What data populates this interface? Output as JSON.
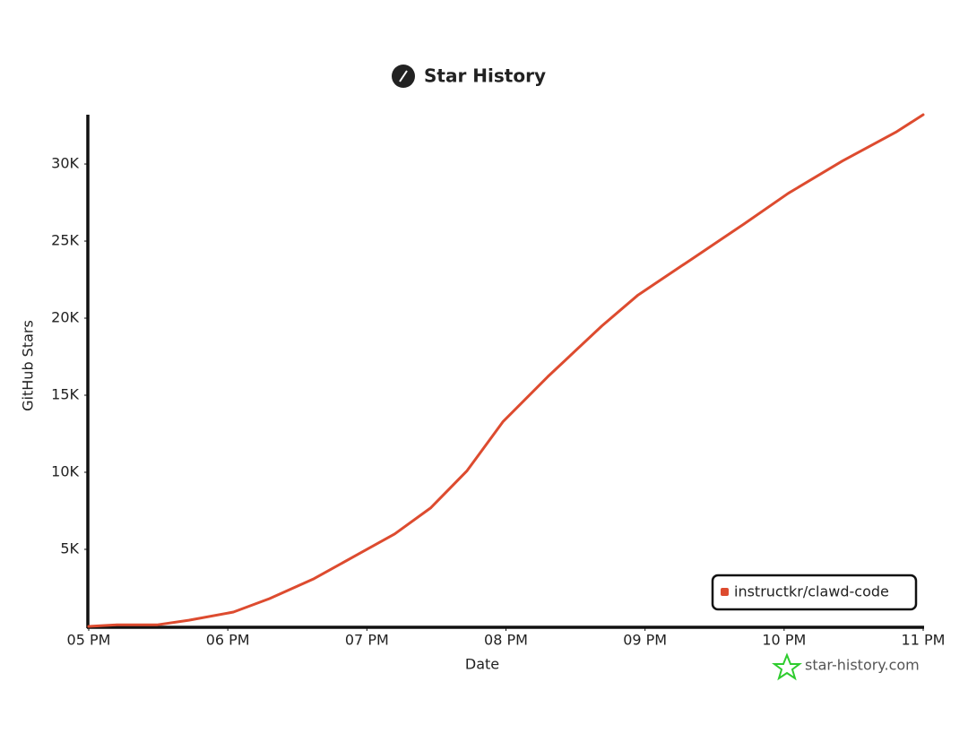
{
  "chart_data": {
    "type": "line",
    "title": "Star History",
    "x_label": "Date",
    "y_label": "GitHub Stars",
    "watermark": "star-history.com",
    "x": [
      17.0,
      17.2,
      17.49,
      17.72,
      18.04,
      18.3,
      18.62,
      18.94,
      19.2,
      19.46,
      19.72,
      19.98,
      20.3,
      20.69,
      20.95,
      21.33,
      21.71,
      22.03,
      22.42,
      22.81,
      23.0
    ],
    "series": [
      {
        "name": "instructkr/clawd-code",
        "color": "#dd4b2f",
        "values": [
          0,
          100,
          100,
          400,
          930,
          1800,
          3100,
          4700,
          6000,
          7700,
          10100,
          13300,
          16200,
          19500,
          21500,
          23800,
          26100,
          28100,
          30200,
          32100,
          33200
        ]
      }
    ],
    "xlim": [
      17,
      23
    ],
    "xticks": [
      {
        "value": 17,
        "label": "05 PM"
      },
      {
        "value": 18,
        "label": "06 PM"
      },
      {
        "value": 19,
        "label": "07 PM"
      },
      {
        "value": 20,
        "label": "08 PM"
      },
      {
        "value": 21,
        "label": "09 PM"
      },
      {
        "value": 22,
        "label": "10 PM"
      },
      {
        "value": 23,
        "label": "11 PM"
      }
    ],
    "ylim": [
      0,
      33200
    ],
    "yticks": [
      {
        "value": 5000,
        "label": "5K"
      },
      {
        "value": 10000,
        "label": "10K"
      },
      {
        "value": 15000,
        "label": "15K"
      },
      {
        "value": 20000,
        "label": "20K"
      },
      {
        "value": 25000,
        "label": "25K"
      },
      {
        "value": 30000,
        "label": "30K"
      }
    ],
    "grid": false,
    "legend": "lower right"
  }
}
